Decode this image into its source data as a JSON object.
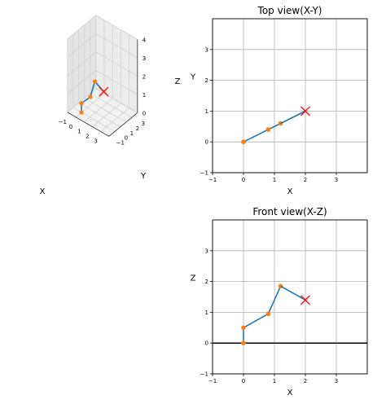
{
  "chart_data": [
    {
      "type": "line3d",
      "xlabel": "X",
      "ylabel": "Y",
      "zlabel": "Z",
      "xlim": [
        -1,
        4
      ],
      "ylim": [
        -1,
        4
      ],
      "zlim": [
        0,
        4
      ],
      "xticks": [
        "−1",
        "0",
        "1",
        "2",
        "3"
      ],
      "yticks": [
        "−1",
        "0",
        "1",
        "2",
        "3"
      ],
      "zticks": [
        "0",
        "1",
        "2",
        "3",
        "4"
      ],
      "joints": [
        {
          "x": 0,
          "y": 0,
          "z": 0
        },
        {
          "x": 0,
          "y": 0,
          "z": 0.5
        },
        {
          "x": 0.8,
          "y": 0.4,
          "z": 0.95
        },
        {
          "x": 1.2,
          "y": 0.6,
          "z": 1.85
        }
      ],
      "target": {
        "x": 2,
        "y": 1,
        "z": 1.4
      },
      "grid": true
    },
    {
      "type": "line",
      "title": "Top view(X-Y)",
      "xlabel": "X",
      "ylabel": "Y",
      "xlim": [
        -1,
        4
      ],
      "ylim": [
        -1,
        4
      ],
      "xticks": [
        "−1",
        "0",
        "1",
        "2",
        "3"
      ],
      "yticks": [
        "−1",
        "0",
        "1",
        "2",
        "3"
      ],
      "x": [
        0,
        0,
        0.8,
        1.2,
        2
      ],
      "y": [
        0,
        0,
        0.4,
        0.6,
        1
      ],
      "joint_count": 4,
      "target": {
        "x": 2,
        "y": 1
      },
      "grid": true
    },
    {
      "type": "line",
      "title": "Front view(X-Z)",
      "xlabel": "X",
      "ylabel": "Z",
      "xlim": [
        -1,
        4
      ],
      "ylim": [
        -1,
        4
      ],
      "xticks": [
        "−1",
        "0",
        "1",
        "2",
        "3"
      ],
      "yticks": [
        "−1",
        "0",
        "1",
        "2",
        "3"
      ],
      "x": [
        0,
        0,
        0.8,
        1.2,
        2
      ],
      "y": [
        0,
        0.5,
        0.95,
        1.85,
        1.4
      ],
      "joint_count": 4,
      "target": {
        "x": 2,
        "y": 1.4
      },
      "ground_line": 0,
      "grid": true
    }
  ],
  "colors": {
    "link": "#1f77b4",
    "joint": "#ff7f0e",
    "target": "#ff0000",
    "grid": "#b0b0b0",
    "pane": "#f2f2f2"
  }
}
